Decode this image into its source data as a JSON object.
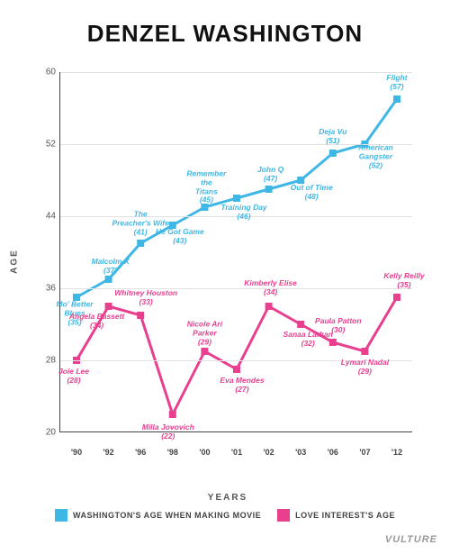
{
  "title": "DENZEL WASHINGTON",
  "credit": "VULTURE",
  "chart": {
    "ylabel": "AGE",
    "xlabel": "YEARS",
    "ylim": [
      20,
      60
    ],
    "ytick_step": 8,
    "yticks": [
      20,
      28,
      36,
      44,
      52,
      60
    ],
    "background_color": "#ffffff",
    "grid_color": "#e2e2e2",
    "axis_color": "#444444",
    "font_family": "Helvetica Neue",
    "title_fontsize": 26,
    "marker": "square",
    "marker_size": 8,
    "line_width": 3,
    "categories": [
      "'90",
      "'92",
      "'96",
      "'98",
      "'00",
      "'01",
      "'02",
      "'03",
      "'06",
      "'07",
      "'12"
    ],
    "series": [
      {
        "key": "denzel",
        "legend": "WASHINGTON'S AGE WHEN MAKING MOVIE",
        "color": "#3fb7e4",
        "values": [
          35,
          37,
          41,
          43,
          45,
          46,
          47,
          48,
          51,
          52,
          57
        ],
        "labels": [
          "Mo' Better Blues",
          "Malcolm X",
          "The Preacher's Wife",
          "He Got Game",
          "Remember the Titans",
          "Training Day",
          "John Q",
          "Out of Time",
          "Deja Vu",
          "American Gangster",
          "Flight"
        ],
        "label_offsets": [
          [
            -2,
            18
          ],
          [
            2,
            -14
          ],
          [
            0,
            -22
          ],
          [
            8,
            13
          ],
          [
            2,
            -22
          ],
          [
            8,
            16
          ],
          [
            2,
            -16
          ],
          [
            12,
            14
          ],
          [
            0,
            -18
          ],
          [
            12,
            14
          ],
          [
            0,
            -18
          ]
        ]
      },
      {
        "key": "love",
        "legend": "LOVE INTEREST'S AGE",
        "color": "#e83f8f",
        "values": [
          28,
          34,
          33,
          22,
          29,
          27,
          34,
          32,
          30,
          29,
          35
        ],
        "labels": [
          "Joie Lee",
          "Angela Bassett",
          "Whitney Houston",
          "Milla Jovovich",
          "Nicole Ari Parker",
          "Eva Mendes",
          "Kimberly Elise",
          "Sanaa Lathan",
          "Paula Patton",
          "Lymari Nadal",
          "Kelly Reilly"
        ],
        "label_offsets": [
          [
            -3,
            18
          ],
          [
            -13,
            17
          ],
          [
            6,
            -19
          ],
          [
            -5,
            20
          ],
          [
            0,
            -20
          ],
          [
            6,
            18
          ],
          [
            2,
            -20
          ],
          [
            8,
            17
          ],
          [
            6,
            -18
          ],
          [
            0,
            18
          ],
          [
            8,
            -18
          ]
        ]
      }
    ]
  }
}
